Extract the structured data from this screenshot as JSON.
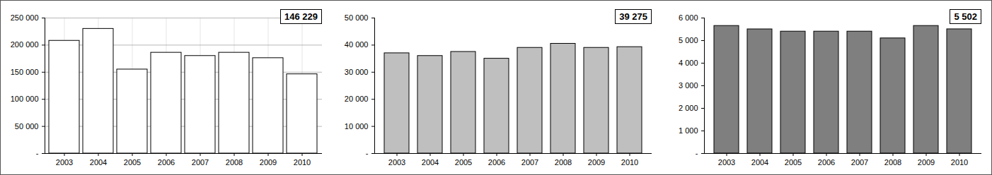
{
  "chart_data": [
    {
      "type": "bar",
      "categories": [
        "2003",
        "2004",
        "2005",
        "2006",
        "2007",
        "2008",
        "2009",
        "2010"
      ],
      "values": [
        208000,
        230000,
        155000,
        186000,
        180000,
        186000,
        176000,
        146229
      ],
      "color": "#ffffff",
      "ylim": [
        0,
        250000
      ],
      "yticks": [
        {
          "value": 0,
          "label": "-"
        },
        {
          "value": 50000,
          "label": "50 000"
        },
        {
          "value": 100000,
          "label": "100 000"
        },
        {
          "value": 150000,
          "label": "150 000"
        },
        {
          "value": 200000,
          "label": "200 000"
        },
        {
          "value": 250000,
          "label": "250 000"
        }
      ],
      "grid": true,
      "annotation": "146 229"
    },
    {
      "type": "bar",
      "categories": [
        "2003",
        "2004",
        "2005",
        "2006",
        "2007",
        "2008",
        "2009",
        "2010"
      ],
      "values": [
        37000,
        36000,
        37500,
        35000,
        39000,
        40500,
        39000,
        39275
      ],
      "color": "#bfbfbf",
      "ylim": [
        0,
        50000
      ],
      "yticks": [
        {
          "value": 0,
          "label": "-"
        },
        {
          "value": 10000,
          "label": "10 000"
        },
        {
          "value": 20000,
          "label": "20 000"
        },
        {
          "value": 30000,
          "label": "30 000"
        },
        {
          "value": 40000,
          "label": "40 000"
        },
        {
          "value": 50000,
          "label": "50 000"
        }
      ],
      "grid": false,
      "annotation": "39 275"
    },
    {
      "type": "bar",
      "categories": [
        "2003",
        "2004",
        "2005",
        "2006",
        "2007",
        "2008",
        "2009",
        "2010"
      ],
      "values": [
        5650,
        5500,
        5400,
        5400,
        5400,
        5100,
        5650,
        5502
      ],
      "color": "#7f7f7f",
      "ylim": [
        0,
        6000
      ],
      "yticks": [
        {
          "value": 0,
          "label": "-"
        },
        {
          "value": 1000,
          "label": "1 000"
        },
        {
          "value": 2000,
          "label": "2 000"
        },
        {
          "value": 3000,
          "label": "3 000"
        },
        {
          "value": 4000,
          "label": "4 000"
        },
        {
          "value": 5000,
          "label": "5 000"
        },
        {
          "value": 6000,
          "label": "6 000"
        }
      ],
      "grid": false,
      "annotation": "5 502"
    }
  ]
}
